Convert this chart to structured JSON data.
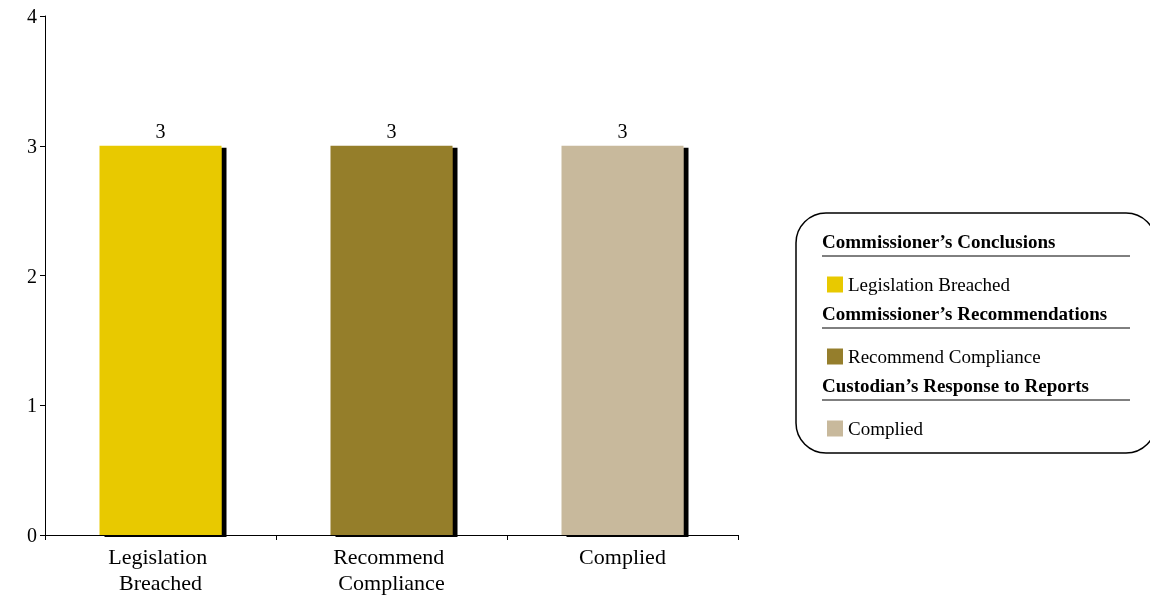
{
  "chart_data": {
    "type": "bar",
    "categories": [
      "Legislation Breached",
      "Recommend Compliance",
      "Complied"
    ],
    "series": [
      {
        "name": "Legislation Breached",
        "color": "#e8c900",
        "values": [
          3,
          null,
          null
        ]
      },
      {
        "name": "Recommend Compliance",
        "color": "#957e2c",
        "values": [
          null,
          3,
          null
        ]
      },
      {
        "name": "Complied",
        "color": "#c8b99c",
        "values": [
          null,
          null,
          3
        ]
      }
    ],
    "annotations": [
      "Commissioner’s Conclusions",
      "Commissioner’s Recommendations",
      "Custodian’s Response to Reports"
    ],
    "ylim": [
      0,
      4
    ],
    "yticks": [
      0,
      1,
      2,
      3,
      4
    ],
    "grid": false,
    "data_labels": true,
    "legend": "right"
  }
}
